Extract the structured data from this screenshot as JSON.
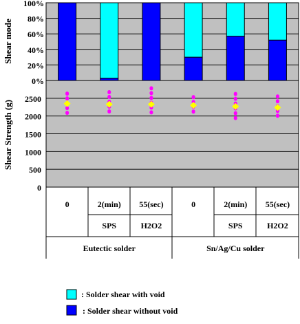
{
  "chart_data": [
    {
      "type": "bar",
      "stacked": true,
      "ylabel": "Shear mode",
      "ylim": [
        0,
        100
      ],
      "yticks": [
        "100%",
        "80%",
        "60%",
        "40%",
        "20%",
        "0%"
      ],
      "categories": [
        "Eutectic 0",
        "Eutectic 2(min) SPS",
        "Eutectic 55(sec) H2O2",
        "Sn/Ag/Cu 0",
        "Sn/Ag/Cu 2(min) SPS",
        "Sn/Ag/Cu 55(sec) H2O2"
      ],
      "series": [
        {
          "name": "Solder shear without void",
          "color": "#0000ff",
          "values": [
            100,
            3,
            100,
            30,
            57,
            52
          ]
        },
        {
          "name": "Solder shear with void",
          "color": "#00ffff",
          "values": [
            0,
            97,
            0,
            70,
            43,
            48
          ]
        }
      ],
      "grid": true
    },
    {
      "type": "scatter",
      "ylabel": "Shear Strength (g)",
      "ylim": [
        0,
        3000
      ],
      "yticks": [
        "2500",
        "2000",
        "1500",
        "1000",
        "500",
        "0"
      ],
      "categories": [
        "Eutectic 0",
        "Eutectic 2(min) SPS",
        "Eutectic 55(sec) H2O2",
        "Sn/Ag/Cu 0",
        "Sn/Ag/Cu 2(min) SPS",
        "Sn/Ag/Cu 55(sec) H2O2"
      ],
      "mean": [
        2350,
        2330,
        2330,
        2300,
        2270,
        2240
      ],
      "min": [
        2000,
        2050,
        2050,
        2060,
        1890,
        1960
      ],
      "max": [
        2640,
        2680,
        2790,
        2540,
        2630,
        2560
      ],
      "mean_color": "#ffff00",
      "point_color": "#ff00ff",
      "grid": true
    }
  ],
  "axis": {
    "row1": [
      "0",
      "2(min)",
      "55(sec)",
      "0",
      "2(min)",
      "55(sec)"
    ],
    "row2": [
      "",
      "SPS",
      "H2O2",
      "",
      "SPS",
      "H2O2"
    ],
    "groups": [
      "Eutectic solder",
      "Sn/Ag/Cu solder"
    ]
  },
  "legend": [
    {
      "label": ": Solder shear with void",
      "color": "#00ffff"
    },
    {
      "label": ": Solder shear without void",
      "color": "#0000ff"
    }
  ]
}
